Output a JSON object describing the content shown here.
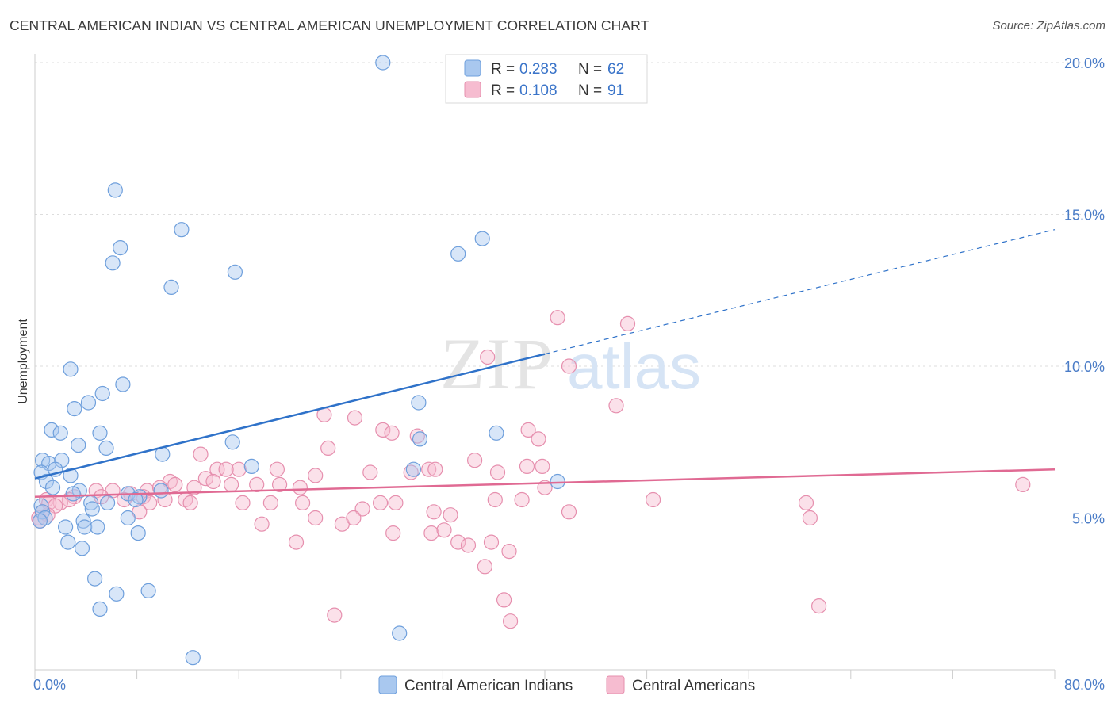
{
  "header": {
    "title": "CENTRAL AMERICAN INDIAN VS CENTRAL AMERICAN UNEMPLOYMENT CORRELATION CHART",
    "source": "Source: ZipAtlas.com"
  },
  "watermark": {
    "zip": "ZIP",
    "atlas": "atlas"
  },
  "colors": {
    "blue_fill": "#a9c8ef",
    "blue_stroke": "#6e9fdc",
    "blue_line": "#2f72c9",
    "pink_fill": "#f6bcd0",
    "pink_stroke": "#e68fae",
    "pink_line": "#e06a93",
    "grid": "#dddddd",
    "tick": "#4a7cc7"
  },
  "legend": {
    "blue": {
      "r_label": "R =",
      "r_value": "0.283",
      "n_label": "N =",
      "n_value": "62"
    },
    "pink": {
      "r_label": "R =",
      "r_value": "0.108",
      "n_label": "N =",
      "n_value": "91"
    }
  },
  "chart_data": {
    "type": "scatter",
    "xlabel": "",
    "ylabel": "Unemployment",
    "xlim": [
      0,
      80
    ],
    "ylim": [
      0,
      20.5
    ],
    "x_tick_labels": [
      {
        "value": 0,
        "label": "0.0%"
      },
      {
        "value": 80,
        "label": "80.0%"
      }
    ],
    "y_tick_labels": [
      {
        "value": 5,
        "label": "5.0%"
      },
      {
        "value": 10,
        "label": "10.0%"
      },
      {
        "value": 15,
        "label": "15.0%"
      },
      {
        "value": 20,
        "label": "20.0%"
      }
    ],
    "grid": "horizontal dashed",
    "series": [
      {
        "name": "Central American Indians",
        "color": "#a9c8ef",
        "trend": {
          "x0": 0,
          "y0": 6.3,
          "x1": 40,
          "y1": 10.4,
          "dashed_to_x": 80,
          "dashed_to_y": 14.5
        },
        "points": [
          [
            27.3,
            20.0
          ],
          [
            6.3,
            15.8
          ],
          [
            11.5,
            14.5
          ],
          [
            6.7,
            13.9
          ],
          [
            6.1,
            13.4
          ],
          [
            33.2,
            13.7
          ],
          [
            35.1,
            14.2
          ],
          [
            15.7,
            13.1
          ],
          [
            10.7,
            12.6
          ],
          [
            2.8,
            9.9
          ],
          [
            6.9,
            9.4
          ],
          [
            5.3,
            9.1
          ],
          [
            4.2,
            8.8
          ],
          [
            3.1,
            8.6
          ],
          [
            30.1,
            8.8
          ],
          [
            1.3,
            7.9
          ],
          [
            2.0,
            7.8
          ],
          [
            5.1,
            7.8
          ],
          [
            3.4,
            7.4
          ],
          [
            5.6,
            7.3
          ],
          [
            10.0,
            7.1
          ],
          [
            15.5,
            7.5
          ],
          [
            36.2,
            7.8
          ],
          [
            30.2,
            7.6
          ],
          [
            0.6,
            6.9
          ],
          [
            1.1,
            6.8
          ],
          [
            2.1,
            6.9
          ],
          [
            1.6,
            6.6
          ],
          [
            0.5,
            6.5
          ],
          [
            2.8,
            6.4
          ],
          [
            17.0,
            6.7
          ],
          [
            29.7,
            6.6
          ],
          [
            0.9,
            6.2
          ],
          [
            1.4,
            6.0
          ],
          [
            3.5,
            5.9
          ],
          [
            3.0,
            5.8
          ],
          [
            7.3,
            5.8
          ],
          [
            8.2,
            5.7
          ],
          [
            9.9,
            5.9
          ],
          [
            4.4,
            5.5
          ],
          [
            5.7,
            5.5
          ],
          [
            7.9,
            5.6
          ],
          [
            0.5,
            5.4
          ],
          [
            41.0,
            6.2
          ],
          [
            4.5,
            5.3
          ],
          [
            0.6,
            5.2
          ],
          [
            0.8,
            5.0
          ],
          [
            0.4,
            4.9
          ],
          [
            3.8,
            4.9
          ],
          [
            7.3,
            5.0
          ],
          [
            2.4,
            4.7
          ],
          [
            3.9,
            4.7
          ],
          [
            4.9,
            4.7
          ],
          [
            8.1,
            4.5
          ],
          [
            2.6,
            4.2
          ],
          [
            3.7,
            4.0
          ],
          [
            4.7,
            3.0
          ],
          [
            6.4,
            2.5
          ],
          [
            8.9,
            2.6
          ],
          [
            5.1,
            2.0
          ],
          [
            28.6,
            1.2
          ],
          [
            12.4,
            0.4
          ]
        ]
      },
      {
        "name": "Central Americans",
        "color": "#f6bcd0",
        "trend": {
          "x0": 0,
          "y0": 5.7,
          "x1": 80,
          "y1": 6.6
        },
        "points": [
          [
            41.0,
            11.6
          ],
          [
            46.5,
            11.4
          ],
          [
            41.9,
            10.0
          ],
          [
            35.5,
            10.3
          ],
          [
            45.6,
            8.7
          ],
          [
            22.7,
            8.4
          ],
          [
            25.1,
            8.3
          ],
          [
            27.3,
            7.9
          ],
          [
            30.0,
            7.7
          ],
          [
            38.7,
            7.9
          ],
          [
            39.5,
            7.6
          ],
          [
            28.0,
            7.8
          ],
          [
            13.0,
            7.1
          ],
          [
            23.0,
            7.3
          ],
          [
            16.0,
            6.6
          ],
          [
            19.0,
            6.6
          ],
          [
            14.3,
            6.6
          ],
          [
            15.0,
            6.6
          ],
          [
            22.0,
            6.4
          ],
          [
            26.3,
            6.5
          ],
          [
            29.5,
            6.5
          ],
          [
            30.9,
            6.6
          ],
          [
            31.4,
            6.6
          ],
          [
            34.5,
            6.9
          ],
          [
            36.3,
            6.5
          ],
          [
            38.6,
            6.7
          ],
          [
            39.8,
            6.7
          ],
          [
            13.4,
            6.3
          ],
          [
            14.0,
            6.2
          ],
          [
            15.4,
            6.1
          ],
          [
            17.4,
            6.1
          ],
          [
            19.2,
            6.1
          ],
          [
            20.8,
            6.0
          ],
          [
            10.6,
            6.2
          ],
          [
            12.5,
            6.0
          ],
          [
            6.1,
            5.9
          ],
          [
            7.5,
            5.8
          ],
          [
            8.8,
            5.9
          ],
          [
            9.8,
            6.0
          ],
          [
            11.0,
            6.1
          ],
          [
            4.8,
            5.9
          ],
          [
            5.2,
            5.7
          ],
          [
            3.1,
            5.7
          ],
          [
            2.7,
            5.6
          ],
          [
            2.0,
            5.5
          ],
          [
            0.9,
            5.6
          ],
          [
            1.1,
            5.5
          ],
          [
            1.6,
            5.4
          ],
          [
            7.0,
            5.6
          ],
          [
            8.5,
            5.7
          ],
          [
            9.0,
            5.5
          ],
          [
            10.2,
            5.6
          ],
          [
            11.8,
            5.6
          ],
          [
            12.2,
            5.5
          ],
          [
            16.3,
            5.5
          ],
          [
            18.5,
            5.5
          ],
          [
            21.0,
            5.5
          ],
          [
            25.7,
            5.3
          ],
          [
            27.1,
            5.5
          ],
          [
            28.3,
            5.5
          ],
          [
            31.3,
            5.2
          ],
          [
            32.6,
            5.1
          ],
          [
            36.1,
            5.6
          ],
          [
            38.2,
            5.6
          ],
          [
            40.0,
            6.0
          ],
          [
            48.5,
            5.6
          ],
          [
            60.5,
            5.5
          ],
          [
            60.8,
            5.0
          ],
          [
            41.9,
            5.2
          ],
          [
            1.0,
            5.1
          ],
          [
            0.3,
            5.0
          ],
          [
            0.4,
            4.9
          ],
          [
            0.6,
            5.2
          ],
          [
            8.2,
            5.2
          ],
          [
            22.0,
            5.0
          ],
          [
            24.1,
            4.8
          ],
          [
            25.0,
            5.0
          ],
          [
            17.8,
            4.8
          ],
          [
            28.1,
            4.5
          ],
          [
            31.1,
            4.5
          ],
          [
            32.1,
            4.6
          ],
          [
            33.2,
            4.2
          ],
          [
            34.0,
            4.1
          ],
          [
            35.8,
            4.2
          ],
          [
            37.2,
            3.9
          ],
          [
            35.3,
            3.4
          ],
          [
            20.5,
            4.2
          ],
          [
            36.8,
            2.3
          ],
          [
            23.5,
            1.8
          ],
          [
            37.3,
            1.6
          ],
          [
            61.5,
            2.1
          ],
          [
            77.5,
            6.1
          ]
        ]
      }
    ]
  },
  "bottom_legend": {
    "blue_label": "Central American Indians",
    "pink_label": "Central Americans"
  }
}
